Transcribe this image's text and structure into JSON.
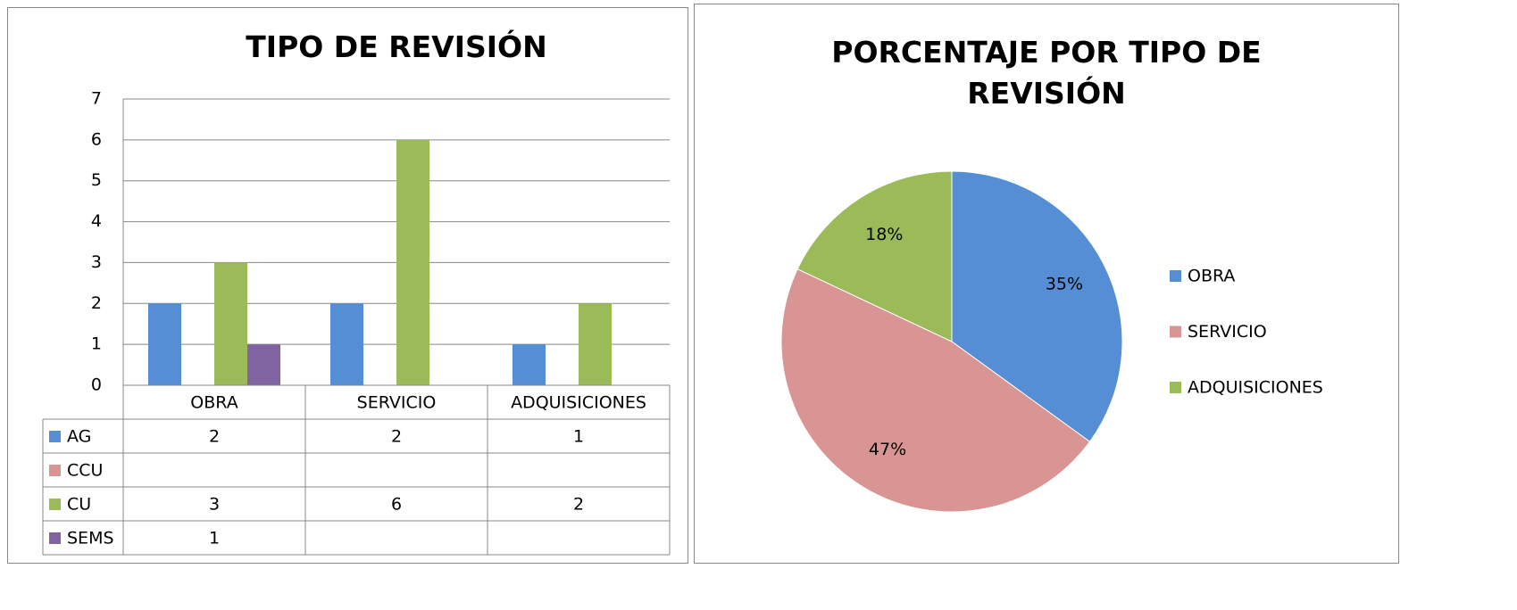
{
  "chart_data": [
    {
      "type": "bar",
      "title": "TIPO DE REVISIÓN",
      "categories": [
        "OBRA",
        "SERVICIO",
        "ADQUISICIONES"
      ],
      "series": [
        {
          "name": "AG",
          "color": "#558ed5",
          "values": [
            2,
            2,
            1
          ]
        },
        {
          "name": "CCU",
          "color": "#d99594",
          "values": [
            null,
            null,
            null
          ]
        },
        {
          "name": "CU",
          "color": "#9bbb59",
          "values": [
            3,
            6,
            2
          ]
        },
        {
          "name": "SEMS",
          "color": "#8064a2",
          "values": [
            1,
            null,
            null
          ]
        }
      ],
      "ylim": [
        0,
        7
      ],
      "yticks": [
        0,
        1,
        2,
        3,
        4,
        5,
        6,
        7
      ],
      "grid": true,
      "data_table": true
    },
    {
      "type": "pie",
      "title": "PORCENTAJE POR TIPO DE REVISIÓN",
      "categories": [
        "OBRA",
        "SERVICIO",
        "ADQUISICIONES"
      ],
      "values": [
        35,
        47,
        18
      ],
      "value_labels": [
        "35%",
        "47%",
        "18%"
      ],
      "colors": [
        "#558ed5",
        "#d99594",
        "#9bbb59"
      ],
      "legend": "right"
    }
  ]
}
